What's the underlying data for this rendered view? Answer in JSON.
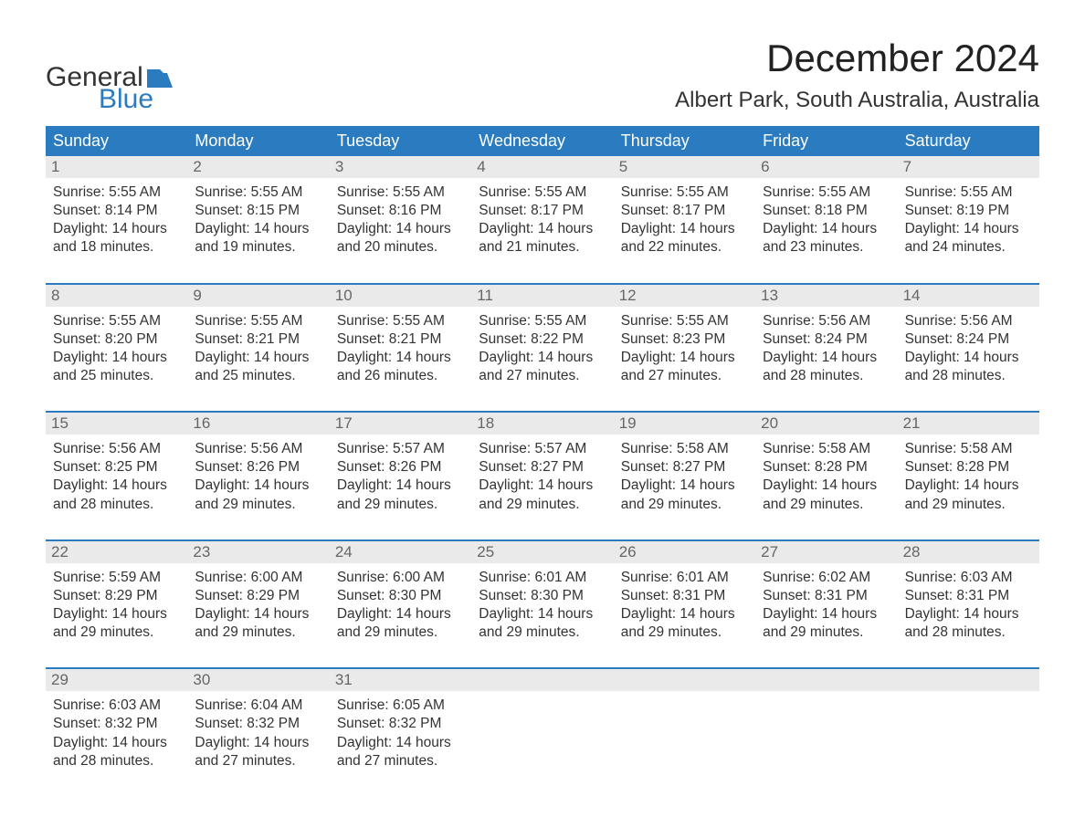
{
  "logo": {
    "word1": "General",
    "word2": "Blue",
    "flag_color": "#2a7bbf"
  },
  "title": "December 2024",
  "location": "Albert Park, South Australia, Australia",
  "colors": {
    "header_bg": "#2a7bbf",
    "header_text": "#ffffff",
    "daynum_bg": "#eaeaea",
    "daynum_text": "#666666",
    "body_text": "#333333",
    "week_border": "#2a7bbf",
    "background": "#ffffff",
    "title_text": "#222222"
  },
  "typography": {
    "title_fontsize": 42,
    "location_fontsize": 24,
    "header_fontsize": 18,
    "daynum_fontsize": 17,
    "cell_fontsize": 15.5,
    "logo_fontsize": 30
  },
  "day_labels": [
    "Sunday",
    "Monday",
    "Tuesday",
    "Wednesday",
    "Thursday",
    "Friday",
    "Saturday"
  ],
  "field_labels": {
    "sunrise": "Sunrise:",
    "sunset": "Sunset:",
    "daylight": "Daylight:"
  },
  "weeks": [
    [
      {
        "num": "1",
        "sunrise": "5:55 AM",
        "sunset": "8:14 PM",
        "daylight": "14 hours and 18 minutes."
      },
      {
        "num": "2",
        "sunrise": "5:55 AM",
        "sunset": "8:15 PM",
        "daylight": "14 hours and 19 minutes."
      },
      {
        "num": "3",
        "sunrise": "5:55 AM",
        "sunset": "8:16 PM",
        "daylight": "14 hours and 20 minutes."
      },
      {
        "num": "4",
        "sunrise": "5:55 AM",
        "sunset": "8:17 PM",
        "daylight": "14 hours and 21 minutes."
      },
      {
        "num": "5",
        "sunrise": "5:55 AM",
        "sunset": "8:17 PM",
        "daylight": "14 hours and 22 minutes."
      },
      {
        "num": "6",
        "sunrise": "5:55 AM",
        "sunset": "8:18 PM",
        "daylight": "14 hours and 23 minutes."
      },
      {
        "num": "7",
        "sunrise": "5:55 AM",
        "sunset": "8:19 PM",
        "daylight": "14 hours and 24 minutes."
      }
    ],
    [
      {
        "num": "8",
        "sunrise": "5:55 AM",
        "sunset": "8:20 PM",
        "daylight": "14 hours and 25 minutes."
      },
      {
        "num": "9",
        "sunrise": "5:55 AM",
        "sunset": "8:21 PM",
        "daylight": "14 hours and 25 minutes."
      },
      {
        "num": "10",
        "sunrise": "5:55 AM",
        "sunset": "8:21 PM",
        "daylight": "14 hours and 26 minutes."
      },
      {
        "num": "11",
        "sunrise": "5:55 AM",
        "sunset": "8:22 PM",
        "daylight": "14 hours and 27 minutes."
      },
      {
        "num": "12",
        "sunrise": "5:55 AM",
        "sunset": "8:23 PM",
        "daylight": "14 hours and 27 minutes."
      },
      {
        "num": "13",
        "sunrise": "5:56 AM",
        "sunset": "8:24 PM",
        "daylight": "14 hours and 28 minutes."
      },
      {
        "num": "14",
        "sunrise": "5:56 AM",
        "sunset": "8:24 PM",
        "daylight": "14 hours and 28 minutes."
      }
    ],
    [
      {
        "num": "15",
        "sunrise": "5:56 AM",
        "sunset": "8:25 PM",
        "daylight": "14 hours and 28 minutes."
      },
      {
        "num": "16",
        "sunrise": "5:56 AM",
        "sunset": "8:26 PM",
        "daylight": "14 hours and 29 minutes."
      },
      {
        "num": "17",
        "sunrise": "5:57 AM",
        "sunset": "8:26 PM",
        "daylight": "14 hours and 29 minutes."
      },
      {
        "num": "18",
        "sunrise": "5:57 AM",
        "sunset": "8:27 PM",
        "daylight": "14 hours and 29 minutes."
      },
      {
        "num": "19",
        "sunrise": "5:58 AM",
        "sunset": "8:27 PM",
        "daylight": "14 hours and 29 minutes."
      },
      {
        "num": "20",
        "sunrise": "5:58 AM",
        "sunset": "8:28 PM",
        "daylight": "14 hours and 29 minutes."
      },
      {
        "num": "21",
        "sunrise": "5:58 AM",
        "sunset": "8:28 PM",
        "daylight": "14 hours and 29 minutes."
      }
    ],
    [
      {
        "num": "22",
        "sunrise": "5:59 AM",
        "sunset": "8:29 PM",
        "daylight": "14 hours and 29 minutes."
      },
      {
        "num": "23",
        "sunrise": "6:00 AM",
        "sunset": "8:29 PM",
        "daylight": "14 hours and 29 minutes."
      },
      {
        "num": "24",
        "sunrise": "6:00 AM",
        "sunset": "8:30 PM",
        "daylight": "14 hours and 29 minutes."
      },
      {
        "num": "25",
        "sunrise": "6:01 AM",
        "sunset": "8:30 PM",
        "daylight": "14 hours and 29 minutes."
      },
      {
        "num": "26",
        "sunrise": "6:01 AM",
        "sunset": "8:31 PM",
        "daylight": "14 hours and 29 minutes."
      },
      {
        "num": "27",
        "sunrise": "6:02 AM",
        "sunset": "8:31 PM",
        "daylight": "14 hours and 29 minutes."
      },
      {
        "num": "28",
        "sunrise": "6:03 AM",
        "sunset": "8:31 PM",
        "daylight": "14 hours and 28 minutes."
      }
    ],
    [
      {
        "num": "29",
        "sunrise": "6:03 AM",
        "sunset": "8:32 PM",
        "daylight": "14 hours and 28 minutes."
      },
      {
        "num": "30",
        "sunrise": "6:04 AM",
        "sunset": "8:32 PM",
        "daylight": "14 hours and 27 minutes."
      },
      {
        "num": "31",
        "sunrise": "6:05 AM",
        "sunset": "8:32 PM",
        "daylight": "14 hours and 27 minutes."
      },
      null,
      null,
      null,
      null
    ]
  ]
}
